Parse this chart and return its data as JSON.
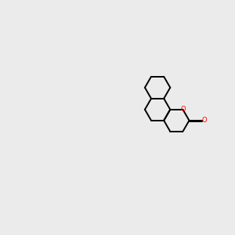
{
  "background_color": "#ebebeb",
  "bond_color": "#000000",
  "oxygen_color": "#ff0000",
  "figsize": [
    3.0,
    3.0
  ],
  "dpi": 100,
  "lw": 1.4
}
